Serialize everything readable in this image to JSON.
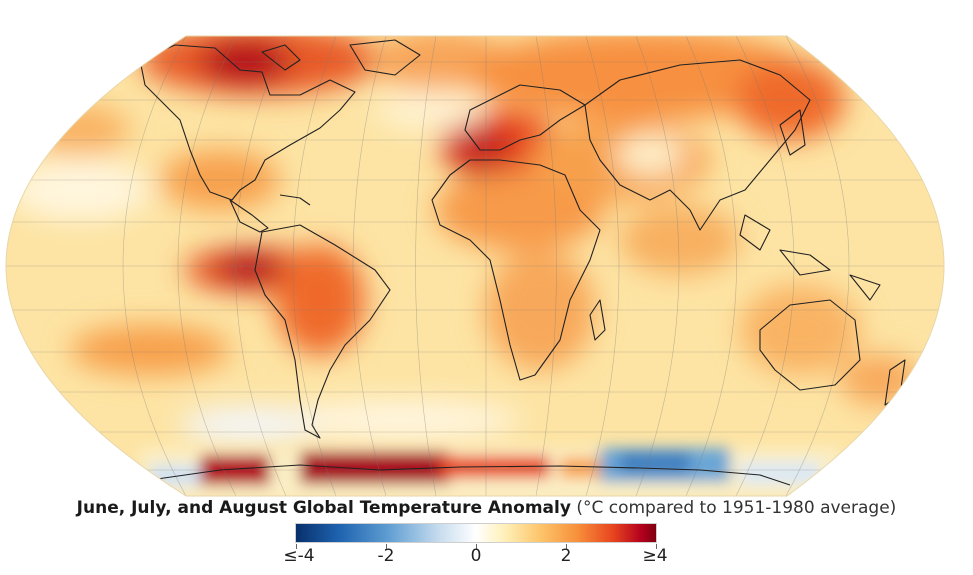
{
  "figure": {
    "title_bold": "June, July, and August Global Temperature Anomaly",
    "title_rest": "(°C compared to 1951-1980 average)"
  },
  "legend": {
    "ticks": [
      "≤-4",
      "-2",
      "0",
      "2",
      "≥4"
    ],
    "min": -4,
    "max": 4,
    "tick_values": [
      -4,
      -2,
      0,
      2,
      4
    ],
    "colors": {
      "cold_extreme": "#08306b",
      "cold": "#5b9bd0",
      "neutral": "#ffffff",
      "warm": "#fdc46a",
      "hot": "#e8451e",
      "hot_extreme": "#7f0010"
    }
  }
}
